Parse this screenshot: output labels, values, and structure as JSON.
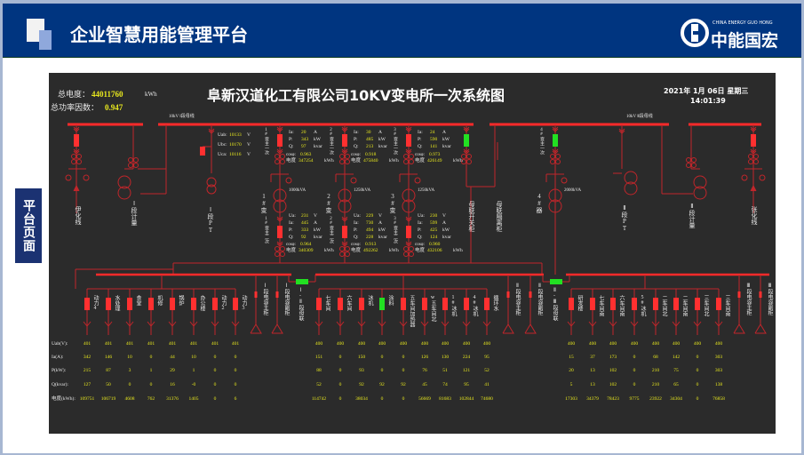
{
  "header": {
    "title": "企业智慧用能管理平台",
    "logo_en": "CHINA ENERGY GUO HONG",
    "logo_cn": "中能国宏"
  },
  "side_label": "平台页面",
  "panel": {
    "title": "阜新汉道化工有限公司10KV变电所一次系统图",
    "date": "2021年 1月 06日 星期三",
    "time": "14:01:39",
    "total_energy_label": "总电度：",
    "total_energy": "44011760",
    "total_energy_unit": "kWh",
    "pf_label": "总功率因数：",
    "pf": "0.947",
    "bus1_label": "10kV Ⅰ段母线",
    "bus2_label": "10kV Ⅱ段母线"
  },
  "colors": {
    "line": "#c0262b",
    "bus": "#ff2a2a",
    "breaker_closed": "#ff3030",
    "breaker_open": "#22e022",
    "value": "#e8e81e",
    "panel_bg": "#2b2b2b",
    "header_bg": "#003580"
  },
  "pt": [
    {
      "label": "Uab:",
      "value": "10133",
      "unit": "V"
    },
    {
      "label": "Ubc:",
      "value": "10170",
      "unit": "V"
    },
    {
      "label": "Uca:",
      "value": "10116",
      "unit": "V"
    }
  ],
  "hv_feeders": [
    "伊化线",
    "Ⅰ段计量",
    "Ⅰ段PT",
    "母联开关柜",
    "母联隔离柜",
    "Ⅱ段PT",
    "Ⅱ段计量",
    "张化线"
  ],
  "field_labels": {
    "ua": "Ua:",
    "ia": "Ia:",
    "p": "P:",
    "q": "Q:",
    "cos": "cosφ:",
    "energy": "电度"
  },
  "units": {
    "v": "V",
    "a": "A",
    "kw": "kW",
    "kvar": "kvar",
    "kwh": "kWh"
  },
  "transformers": [
    {
      "name": "1#变",
      "capacity": "1000kVA",
      "primary_label": "1#变主一次",
      "secondary_label": "1#变主二次",
      "primary_status": "closed",
      "primary": {
        "ia": "20",
        "p": "343",
        "q": "97",
        "cos": "0.963",
        "energy": "347254"
      },
      "secondary": {
        "ua": "231",
        "ia": "445",
        "p": "333",
        "q": "92",
        "cos": "0.964",
        "energy": "340309"
      }
    },
    {
      "name": "2#变",
      "capacity": "1250kVA",
      "primary_label": "2#变主一次",
      "secondary_label": "2#变主二次",
      "primary_status": "closed",
      "primary": {
        "ia": "30",
        "p": "485",
        "q": "213",
        "cos": "0.918",
        "energy": "475840"
      },
      "secondary": {
        "ua": "229",
        "ia": "730",
        "p": "494",
        "q": "228",
        "cos": "0.913",
        "energy": "492262"
      }
    },
    {
      "name": "3#变",
      "capacity": "1250kVA",
      "primary_label": "3#变主一次",
      "secondary_label": "3#变主二次",
      "primary_status": "closed",
      "primary": {
        "ia": "24",
        "p": "590",
        "q": "141",
        "cos": "0.973",
        "energy": "426149"
      },
      "secondary": {
        "ua": "230",
        "ia": "599",
        "p": "425",
        "q": "124",
        "cos": "0.960",
        "energy": "432106"
      }
    },
    {
      "name": "4#器",
      "capacity": "2000kVA",
      "primary_label": "4#变主一次",
      "primary_status": "open"
    }
  ],
  "couplers": [
    "Ⅰ-Ⅱ段母联",
    "Ⅱ-Ⅲ段母联"
  ],
  "table_labels": [
    "Uab(V):",
    "Ia(A):",
    "P(kW):",
    "Q(kvar):",
    "电度(kWh):"
  ],
  "lv_groups": [
    {
      "capacitors": [
        "Ⅰ段电容主柜",
        "Ⅰ段电容副柜"
      ],
      "feeders": [
        {
          "name": "动力4",
          "status": "closed",
          "uab": "401",
          "ia": "342",
          "p": "215",
          "q": "127",
          "energy": "109751"
        },
        {
          "name": "水处理",
          "status": "closed",
          "uab": "401",
          "ia": "146",
          "p": "87",
          "q": "50",
          "energy": "106719"
        },
        {
          "name": "食堂",
          "status": "closed",
          "uab": "401",
          "ia": "10",
          "p": "3",
          "q": "0",
          "energy": "4608"
        },
        {
          "name": "机修",
          "status": "closed",
          "uab": "401",
          "ia": "0",
          "p": "1",
          "q": "0",
          "energy": "762"
        },
        {
          "name": "锅炉",
          "status": "closed",
          "uab": "401",
          "ia": "44",
          "p": "29",
          "q": "16",
          "energy": "31376"
        },
        {
          "name": "办公楼",
          "status": "closed",
          "uab": "401",
          "ia": "10",
          "p": "1",
          "q": "-0",
          "energy": "1405"
        },
        {
          "name": "动力2",
          "status": "closed",
          "uab": "401",
          "ia": "0",
          "p": "0",
          "q": "0",
          "energy": "0"
        },
        {
          "name": "动力3",
          "status": "closed",
          "uab": "401",
          "ia": "0",
          "p": "0",
          "q": "0",
          "energy": "6"
        }
      ]
    },
    {
      "capacitors": [
        "Ⅱ段电容主柜",
        "Ⅱ段电容副柜"
      ],
      "feeders": [
        {
          "name": "七车间",
          "status": "closed",
          "uab": "400",
          "ia": "151",
          "p": "88",
          "q": "52",
          "energy": "114742"
        },
        {
          "name": "六车间",
          "status": "closed",
          "uab": "400",
          "ia": "0",
          "p": "0",
          "q": "0",
          "energy": "0"
        },
        {
          "name": "冰机",
          "status": "closed",
          "uab": "400",
          "ia": "150",
          "p": "93",
          "q": "92",
          "energy": "38034"
        },
        {
          "name": "涂料",
          "status": "open",
          "uab": "400",
          "ia": "0",
          "p": "0",
          "q": "92",
          "energy": "0"
        },
        {
          "name": "五车间加热器",
          "status": "closed",
          "uab": "400",
          "ia": "0",
          "p": "0",
          "q": "92",
          "energy": "0"
        },
        {
          "name": "w五车间北",
          "status": "closed",
          "uab": "400",
          "ia": "126",
          "p": "76",
          "q": "45",
          "energy": "56669"
        },
        {
          "name": "1#冰机",
          "status": "closed",
          "uab": "400",
          "ia": "130",
          "p": "51",
          "q": "74",
          "energy": "81683"
        },
        {
          "name": "4#冰机",
          "status": "closed",
          "uab": "400",
          "ia": "224",
          "p": "121",
          "q": "95",
          "energy": "102844"
        },
        {
          "name": "循环水",
          "status": "closed",
          "uab": "400",
          "ia": "95",
          "p": "52",
          "q": "41",
          "energy": "74680"
        }
      ]
    },
    {
      "capacitors": [
        "Ⅲ段电容主柜",
        "Ⅲ段电容副柜"
      ],
      "feeders": [
        {
          "name": "研发楼",
          "status": "closed",
          "uab": "400",
          "ia": "15",
          "p": "20",
          "q": "5",
          "energy": "17303"
        },
        {
          "name": "七车间南",
          "status": "closed",
          "uab": "400",
          "ia": "37",
          "p": "13",
          "q": "13",
          "energy": "34379"
        },
        {
          "name": "六车间南",
          "status": "closed",
          "uab": "400",
          "ia": "173",
          "p": "102",
          "q": "102",
          "energy": "78423"
        },
        {
          "name": "5#冰机",
          "status": "closed",
          "uab": "400",
          "ia": "0",
          "p": "0",
          "q": "0",
          "energy": "9775"
        },
        {
          "name": "二车间北",
          "status": "closed",
          "uab": "400",
          "ia": "68",
          "p": "210",
          "q": "210",
          "energy": "23922"
        },
        {
          "name": "二车间南",
          "status": "closed",
          "uab": "400",
          "ia": "142",
          "p": "75",
          "q": "65",
          "energy": "34304"
        },
        {
          "name": "三车间北",
          "status": "closed",
          "uab": "400",
          "ia": "0",
          "p": "0",
          "q": "0",
          "energy": "0"
        },
        {
          "name": "三车间南",
          "status": "closed",
          "uab": "400",
          "ia": "303",
          "p": "303",
          "q": "138",
          "energy": "76858"
        }
      ]
    }
  ]
}
